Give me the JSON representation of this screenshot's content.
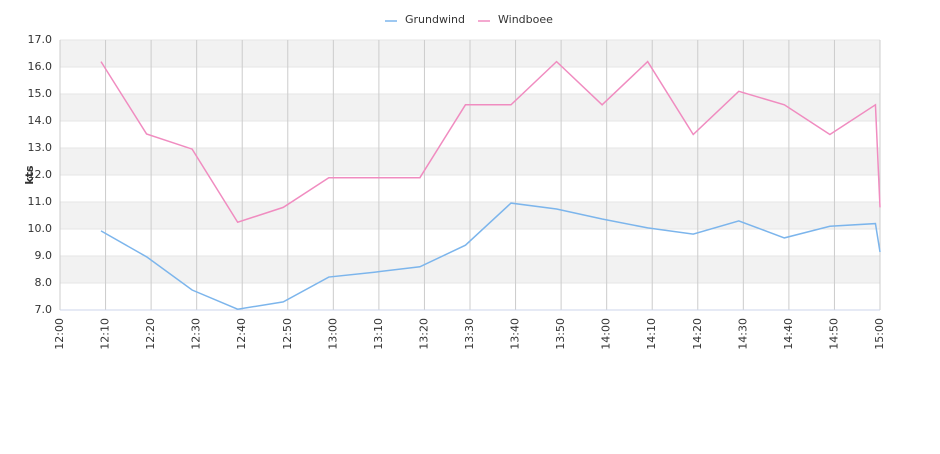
{
  "chart_data": {
    "type": "line",
    "ylabel": "kts",
    "x": [
      "12:09",
      "12:19",
      "12:29",
      "12:39",
      "12:49",
      "12:59",
      "13:09",
      "13:19",
      "13:29",
      "13:39",
      "13:49",
      "13:59",
      "14:09",
      "14:19",
      "14:29",
      "14:39",
      "14:49",
      "14:59",
      "15:00"
    ],
    "series": [
      {
        "name": "Grundwind",
        "color": "#7cb5ec",
        "values": [
          9.93,
          8.97,
          7.74,
          7.03,
          7.3,
          8.22,
          8.4,
          8.6,
          9.4,
          10.96,
          10.74,
          10.37,
          10.04,
          9.81,
          10.3,
          9.67,
          10.1,
          10.2,
          9.15
        ]
      },
      {
        "name": "Windboee",
        "color": "#f08cc0",
        "values": [
          16.2,
          13.52,
          12.96,
          10.25,
          10.8,
          11.9,
          11.9,
          11.9,
          14.6,
          14.6,
          16.2,
          14.6,
          16.2,
          13.5,
          15.1,
          14.6,
          13.5,
          14.6,
          10.8
        ]
      }
    ],
    "xlim": [
      "12:00",
      "15:00"
    ],
    "xticks": [
      "12:00",
      "12:10",
      "12:20",
      "12:30",
      "12:40",
      "12:50",
      "13:00",
      "13:10",
      "13:20",
      "13:30",
      "13:40",
      "13:50",
      "14:00",
      "14:10",
      "14:20",
      "14:30",
      "14:40",
      "14:50",
      "15:00"
    ],
    "ylim": [
      7,
      17
    ],
    "yticks": [
      {
        "value": 7,
        "label": "7.0"
      },
      {
        "value": 8,
        "label": "8.0"
      },
      {
        "value": 9,
        "label": "9.0"
      },
      {
        "value": 10,
        "label": "10.0"
      },
      {
        "value": 11,
        "label": "11.0"
      },
      {
        "value": 12,
        "label": "12.0"
      },
      {
        "value": 13,
        "label": "13.0"
      },
      {
        "value": 14,
        "label": "14.0"
      },
      {
        "value": 15,
        "label": "15.0"
      },
      {
        "value": 16,
        "label": "16.0"
      },
      {
        "value": 17,
        "label": "17.0"
      }
    ],
    "grid": true
  }
}
